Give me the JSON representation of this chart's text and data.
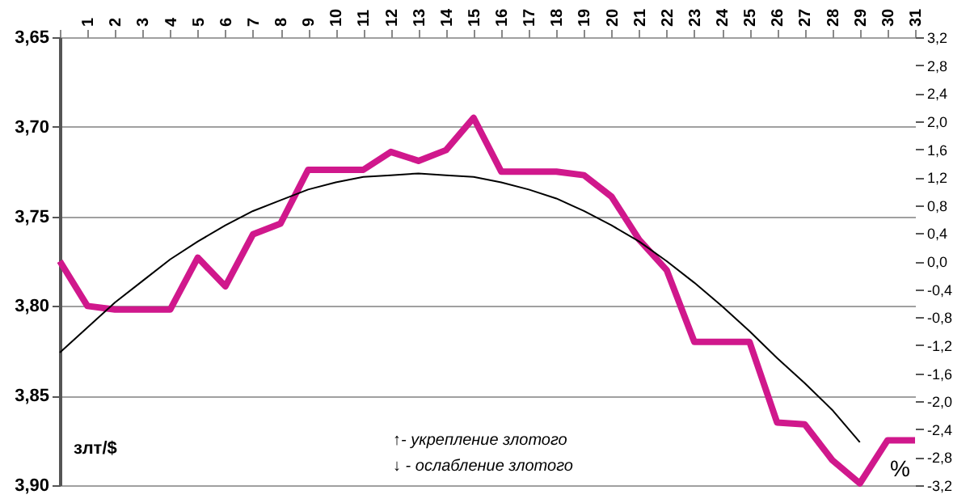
{
  "chart_data": {
    "type": "line",
    "categories": [
      null,
      "1",
      "2",
      "3",
      "4",
      "5",
      "6",
      "7",
      "8",
      "9",
      "10",
      "11",
      "12",
      "13",
      "14",
      "15",
      "16",
      "17",
      "18",
      "19",
      "20",
      "21",
      "22",
      "23",
      "24",
      "25",
      "26",
      "27",
      "28",
      "29",
      "30",
      "31"
    ],
    "series": [
      {
        "color": "#d0188c",
        "values": [
          3.775,
          3.8,
          3.802,
          3.802,
          3.802,
          3.773,
          3.789,
          3.76,
          3.754,
          3.724,
          3.724,
          3.724,
          3.714,
          3.719,
          3.713,
          3.695,
          3.725,
          3.725,
          3.725,
          3.727,
          3.739,
          3.763,
          3.78,
          3.82,
          3.82,
          3.82,
          3.865,
          3.866,
          3.886,
          3.899,
          3.875,
          3.875
        ]
      },
      {
        "type": "line",
        "color": "#000000",
        "values": [
          3.826,
          3.812,
          3.798,
          3.786,
          3.774,
          3.764,
          3.755,
          3.747,
          3.741,
          3.735,
          3.731,
          3.728,
          3.727,
          3.726,
          3.727,
          3.728,
          3.731,
          3.735,
          3.74,
          3.747,
          3.755,
          3.764,
          3.775,
          3.787,
          3.8,
          3.814,
          3.829,
          3.843,
          3.858,
          3.876,
          null,
          null
        ]
      }
    ],
    "ylim": [
      3.9,
      3.65
    ],
    "yticks": [
      {
        "value": 3.65,
        "label": "3,65"
      },
      {
        "value": 3.7,
        "label": "3,70"
      },
      {
        "value": 3.75,
        "label": "3,75"
      },
      {
        "value": 3.8,
        "label": "3,80"
      },
      {
        "value": 3.85,
        "label": "3,85"
      },
      {
        "value": 3.9,
        "label": "3,90"
      }
    ],
    "y2lim": [
      -3.2,
      3.2
    ],
    "y2ticks": [
      {
        "value": -3.2,
        "label": "-3,2"
      },
      {
        "value": -2.8,
        "label": "-2,8"
      },
      {
        "value": -2.4,
        "label": "-2,4"
      },
      {
        "value": -2,
        "label": "-2,0"
      },
      {
        "value": -1.6,
        "label": "-1,6"
      },
      {
        "value": -1.2,
        "label": "-1,2"
      },
      {
        "value": -0.8,
        "label": "-0,8"
      },
      {
        "value": -0.4,
        "label": "-0,4"
      },
      {
        "value": 0,
        "label": "0,0"
      },
      {
        "value": 0.4,
        "label": "0,4"
      },
      {
        "value": 0.8,
        "label": "0,8"
      },
      {
        "value": 1.2,
        "label": "1,2"
      },
      {
        "value": 1.6,
        "label": "1,6"
      },
      {
        "value": 2,
        "label": "2,0"
      },
      {
        "value": 2.4,
        "label": "2,4"
      },
      {
        "value": 2.8,
        "label": "2,8"
      },
      {
        "value": 3.2,
        "label": "3,2"
      }
    ],
    "ylabel": "злт/$",
    "y2label": "%",
    "annotations": [
      "↑- укрепление злотого",
      "↓ - ослабление злотого"
    ],
    "grid": "y",
    "marker": "none",
    "line_style": "solid"
  }
}
